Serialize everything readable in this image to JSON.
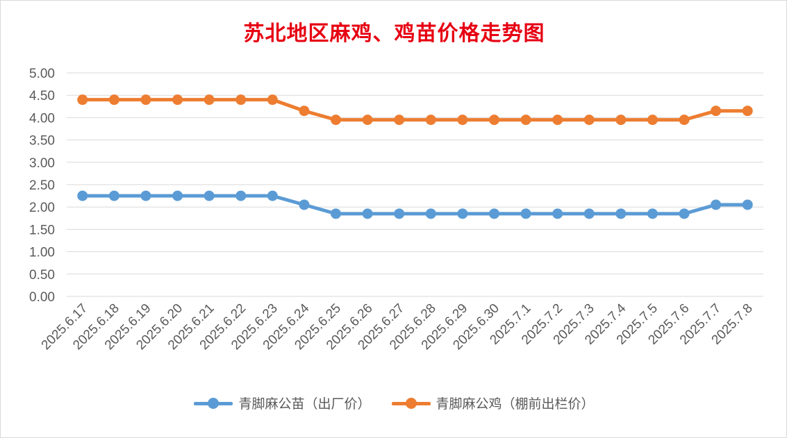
{
  "chart_data": {
    "type": "line",
    "title": "苏北地区麻鸡、鸡苗价格走势图",
    "xlabel": "",
    "ylabel": "",
    "ylim": [
      0,
      5
    ],
    "yticks": [
      "0.00",
      "0.50",
      "1.00",
      "1.50",
      "2.00",
      "2.50",
      "3.00",
      "3.50",
      "4.00",
      "4.50",
      "5.00"
    ],
    "grid": true,
    "legend_position": "bottom",
    "categories": [
      "2025.6.17",
      "2025.6.18",
      "2025.6.19",
      "2025.6.20",
      "2025.6.21",
      "2025.6.22",
      "2025.6.23",
      "2025.6.24",
      "2025.6.25",
      "2025.6.26",
      "2025.6.27",
      "2025.6.28",
      "2025.6.29",
      "2025.6.30",
      "2025.7.1",
      "2025.7.2",
      "2025.7.3",
      "2025.7.4",
      "2025.7.5",
      "2025.7.6",
      "2025.7.7",
      "2025.7.8"
    ],
    "series": [
      {
        "name": "青脚麻公苗（出厂价）",
        "color": "#5b9bd5",
        "values": [
          2.25,
          2.25,
          2.25,
          2.25,
          2.25,
          2.25,
          2.25,
          2.05,
          1.85,
          1.85,
          1.85,
          1.85,
          1.85,
          1.85,
          1.85,
          1.85,
          1.85,
          1.85,
          1.85,
          1.85,
          2.05,
          2.05
        ]
      },
      {
        "name": "青脚麻公鸡（棚前出栏价）",
        "color": "#ed7d31",
        "values": [
          4.4,
          4.4,
          4.4,
          4.4,
          4.4,
          4.4,
          4.4,
          4.15,
          3.95,
          3.95,
          3.95,
          3.95,
          3.95,
          3.95,
          3.95,
          3.95,
          3.95,
          3.95,
          3.95,
          3.95,
          4.15,
          4.15
        ]
      }
    ],
    "colors": {
      "title": "#e60012",
      "grid": "#d9d9d9",
      "tick_text": "#595959"
    }
  }
}
